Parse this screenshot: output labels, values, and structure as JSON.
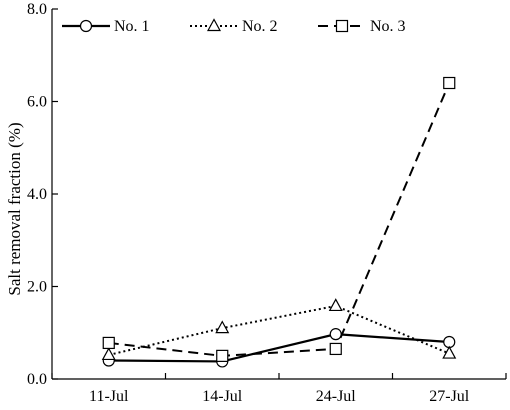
{
  "chart_data": {
    "type": "line",
    "categories": [
      "11-Jul",
      "14-Jul",
      "24-Jul",
      "27-Jul"
    ],
    "ylabel": "Salt removal fraction (%)",
    "xlabel": "",
    "ylim": [
      0.0,
      8.0
    ],
    "yticks": [
      "0.0",
      "2.0",
      "4.0",
      "6.0",
      "8.0"
    ],
    "ytick_values": [
      0,
      2,
      4,
      6,
      8
    ],
    "grid": false,
    "legend_position": "top-left",
    "series": [
      {
        "name": "No. 1",
        "marker": "circle",
        "line_style": "solid",
        "values": [
          0.4,
          0.38,
          0.97,
          0.8
        ]
      },
      {
        "name": "No. 2",
        "marker": "triangle",
        "line_style": "dotted",
        "values": [
          0.52,
          1.1,
          1.58,
          0.55
        ]
      },
      {
        "name": "No. 3",
        "marker": "square",
        "line_style": "dashed",
        "values": [
          0.78,
          0.5,
          0.65,
          6.4
        ]
      }
    ]
  }
}
